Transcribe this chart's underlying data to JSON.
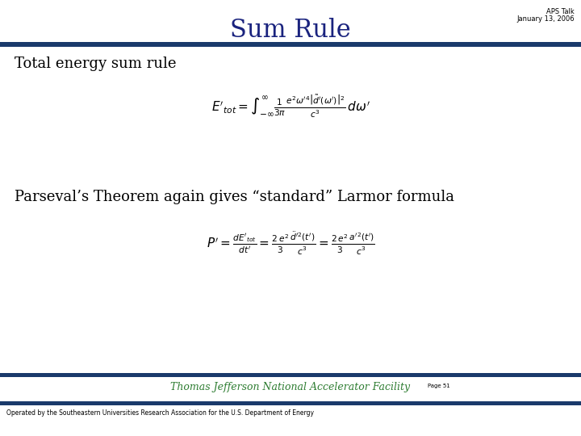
{
  "title": "Sum Rule",
  "title_color": "#1a237e",
  "title_fontsize": 22,
  "subtitle_line1": "APS Talk",
  "subtitle_line2": "January 13, 2006",
  "subtitle_fontsize": 6,
  "subtitle_color": "#000000",
  "header_bar_color": "#1a3a6b",
  "section1_label": "Total energy sum rule",
  "section1_fontsize": 13,
  "section2_label": "Parseval’s Theorem again gives “standard” Larmor formula",
  "section2_fontsize": 13,
  "footer_text": "Thomas Jefferson National Accelerator Facility",
  "footer_color": "#2e7d32",
  "footer_sub": "Operated by the Southeastern Universities Research Association for the U.S. Department of Energy",
  "footer_sub_fontsize": 5.5,
  "footer_main_fontsize": 9,
  "bg_color": "#ffffff",
  "text_color": "#000000",
  "formula_color": "#000000",
  "footer_bar_color": "#1a3a6b",
  "formula1_fontsize": 11,
  "formula2_fontsize": 11
}
